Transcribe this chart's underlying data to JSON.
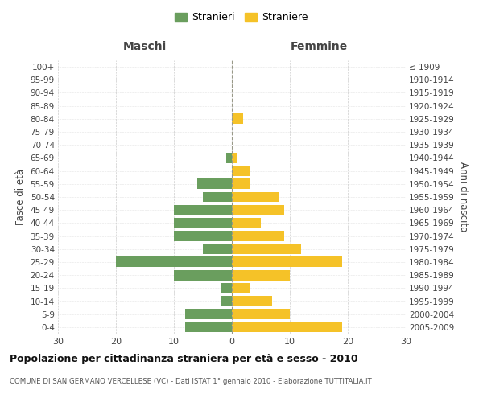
{
  "age_groups": [
    "100+",
    "95-99",
    "90-94",
    "85-89",
    "80-84",
    "75-79",
    "70-74",
    "65-69",
    "60-64",
    "55-59",
    "50-54",
    "45-49",
    "40-44",
    "35-39",
    "30-34",
    "25-29",
    "20-24",
    "15-19",
    "10-14",
    "5-9",
    "0-4"
  ],
  "birth_years": [
    "≤ 1909",
    "1910-1914",
    "1915-1919",
    "1920-1924",
    "1925-1929",
    "1930-1934",
    "1935-1939",
    "1940-1944",
    "1945-1949",
    "1950-1954",
    "1955-1959",
    "1960-1964",
    "1965-1969",
    "1970-1974",
    "1975-1979",
    "1980-1984",
    "1985-1989",
    "1990-1994",
    "1995-1999",
    "2000-2004",
    "2005-2009"
  ],
  "males": [
    0,
    0,
    0,
    0,
    0,
    0,
    0,
    1,
    0,
    6,
    5,
    10,
    10,
    10,
    5,
    20,
    10,
    2,
    2,
    8,
    8
  ],
  "females": [
    0,
    0,
    0,
    0,
    2,
    0,
    0,
    1,
    3,
    3,
    8,
    9,
    5,
    9,
    12,
    19,
    10,
    3,
    7,
    10,
    19
  ],
  "male_color": "#6a9e5e",
  "female_color": "#f5c228",
  "background_color": "#ffffff",
  "grid_color": "#cccccc",
  "bar_height": 0.8,
  "xlim": 30,
  "title": "Popolazione per cittadinanza straniera per età e sesso - 2010",
  "subtitle": "COMUNE DI SAN GERMANO VERCELLESE (VC) - Dati ISTAT 1° gennaio 2010 - Elaborazione TUTTITALIA.IT",
  "xlabel_left": "Maschi",
  "xlabel_right": "Femmine",
  "ylabel_left": "Fasce di età",
  "ylabel_right": "Anni di nascita",
  "legend_male": "Stranieri",
  "legend_female": "Straniere"
}
